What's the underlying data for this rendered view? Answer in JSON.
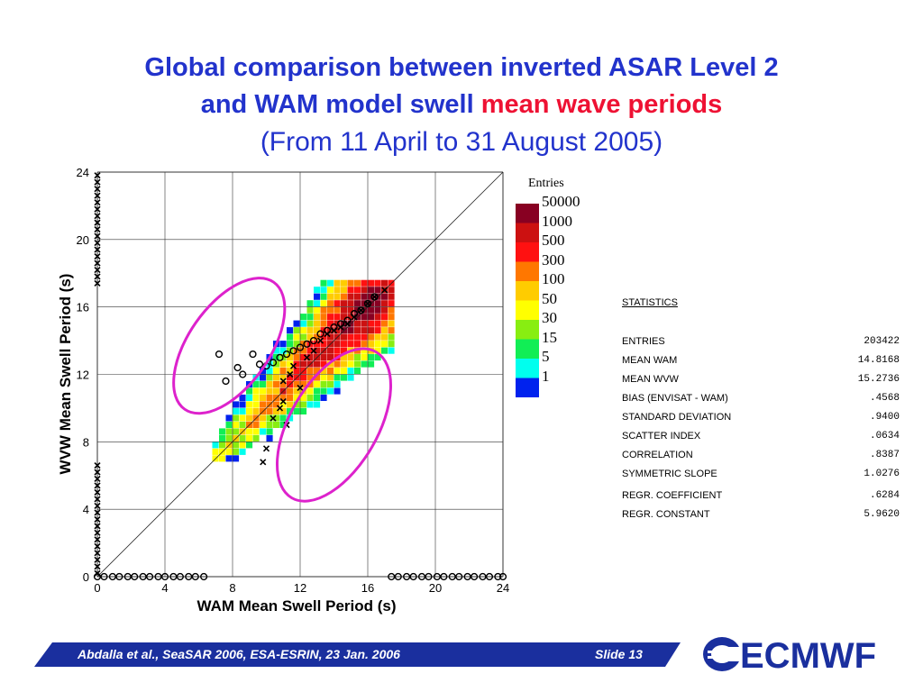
{
  "slide": {
    "title_line1": "Global comparison between inverted ASAR Level 2",
    "title_line2_blue": "and WAM model swell",
    "title_line2_red": "mean wave periods",
    "title_line3": "(From 11 April to 31 August 2005)",
    "footer_text": "Abdalla et al.,  SeaSAR 2006,  ESA-ESRIN,  23 Jan. 2006",
    "footer_slide": "Slide 13",
    "logo_text": "ECMWF",
    "colors": {
      "title_blue": "#2233cc",
      "title_red": "#ee1133",
      "footer_blue": "#1a2f9e",
      "ellipse": "#dd22cc"
    }
  },
  "chart_data": {
    "type": "heatmap",
    "xlabel": "WAM Mean Swell Period (s)",
    "ylabel": "WVW Mean Swell Period (s)",
    "xlim": [
      0,
      24
    ],
    "ylim": [
      0,
      24
    ],
    "xticks": [
      "0",
      "4",
      "8",
      "12",
      "16",
      "20",
      "24"
    ],
    "yticks": [
      "0",
      "4",
      "8",
      "12",
      "16",
      "20",
      "24"
    ],
    "grid": true,
    "legend": {
      "title": "Entries",
      "position": "right",
      "levels": [
        {
          "label": "50000",
          "color": "#880022"
        },
        {
          "label": "1000",
          "color": "#cc1111"
        },
        {
          "label": "500",
          "color": "#ff1111"
        },
        {
          "label": "300",
          "color": "#ff7700"
        },
        {
          "label": "100",
          "color": "#ffcc00"
        },
        {
          "label": "50",
          "color": "#ffff00"
        },
        {
          "label": "30",
          "color": "#88ee11"
        },
        {
          "label": "15",
          "color": "#11ee55"
        },
        {
          "label": "5",
          "color": "#00ffee"
        },
        {
          "label": "1",
          "color": "#0022ee"
        }
      ]
    },
    "statistics": {
      "heading": "STATISTICS",
      "rows": [
        {
          "label": "ENTRIES",
          "value": "203422"
        },
        {
          "label": "MEAN WAM",
          "value": "14.8168"
        },
        {
          "label": "MEAN WVW",
          "value": "15.2736"
        },
        {
          "label": "BIAS (ENVISAT - WAM)",
          "value": ".4568"
        },
        {
          "label": "STANDARD DEVIATION",
          "value": ".9400"
        },
        {
          "label": "SCATTER INDEX",
          "value": ".0634"
        },
        {
          "label": "CORRELATION",
          "value": ".8387"
        },
        {
          "label": "SYMMETRIC SLOPE",
          "value": "1.0276"
        },
        {
          "label": "REGR. COEFFICIENT",
          "value": ".6284"
        },
        {
          "label": "REGR. CONSTANT",
          "value": "5.9620"
        }
      ]
    },
    "binned_means_circles": [
      [
        7.2,
        13.2
      ],
      [
        7.6,
        11.6
      ],
      [
        8.3,
        12.4
      ],
      [
        8.6,
        12.0
      ],
      [
        9.2,
        13.2
      ],
      [
        9.6,
        12.6
      ],
      [
        10.0,
        12.5
      ],
      [
        10.4,
        12.7
      ],
      [
        10.8,
        13.0
      ],
      [
        11.2,
        13.2
      ],
      [
        11.6,
        13.4
      ],
      [
        12.0,
        13.6
      ],
      [
        12.4,
        13.8
      ],
      [
        12.8,
        14.0
      ],
      [
        13.2,
        14.4
      ],
      [
        13.6,
        14.6
      ],
      [
        14.0,
        14.8
      ],
      [
        14.4,
        15.0
      ],
      [
        14.8,
        15.2
      ],
      [
        15.2,
        15.6
      ],
      [
        15.6,
        15.8
      ],
      [
        16.0,
        16.2
      ],
      [
        16.4,
        16.6
      ]
    ],
    "binned_means_crosses": [
      [
        9.8,
        6.8
      ],
      [
        10.0,
        7.6
      ],
      [
        10.4,
        9.4
      ],
      [
        10.8,
        10.0
      ],
      [
        11.0,
        10.4
      ],
      [
        11.2,
        9.0
      ],
      [
        11.0,
        11.6
      ],
      [
        11.4,
        12.0
      ],
      [
        11.6,
        12.5
      ],
      [
        12.0,
        11.2
      ],
      [
        12.4,
        13.0
      ],
      [
        12.8,
        13.4
      ],
      [
        13.2,
        14.0
      ],
      [
        13.6,
        14.4
      ],
      [
        14.0,
        14.6
      ],
      [
        14.4,
        14.8
      ],
      [
        14.8,
        15.0
      ],
      [
        15.2,
        15.4
      ],
      [
        15.6,
        15.8
      ],
      [
        16.0,
        16.2
      ],
      [
        16.4,
        16.6
      ],
      [
        17.0,
        17.0
      ]
    ],
    "axis_crosses_x": [
      0.0
    ],
    "axis_crosses_y": [
      0.2,
      0.6,
      1.0,
      1.4,
      1.8,
      2.2,
      2.6,
      3.0,
      3.4,
      3.8,
      4.2,
      4.6,
      5.0,
      5.4,
      5.8,
      6.2,
      6.6,
      17.4,
      17.8,
      18.2,
      18.6,
      19.0,
      19.4,
      19.8,
      20.2,
      20.6,
      21.0,
      21.4,
      21.8,
      22.2,
      22.6,
      23.0,
      23.4,
      23.8
    ],
    "axis_circles_x": [
      0.0,
      0.4,
      0.9,
      1.3,
      1.8,
      2.2,
      2.7,
      3.1,
      3.6,
      4.0,
      4.5,
      4.9,
      5.4,
      5.8,
      6.3,
      17.4,
      17.8,
      18.3,
      18.7,
      19.2,
      19.6,
      20.1,
      20.5,
      21.0,
      21.4,
      21.9,
      22.3,
      22.8,
      23.2,
      23.7,
      24.0
    ],
    "highlighted_regions": [
      {
        "cx": 7.8,
        "cy": 13.7,
        "rx": 2.4,
        "ry": 4.6,
        "angle": 35
      },
      {
        "cx": 14.0,
        "cy": 9.0,
        "rx": 2.6,
        "ry": 5.0,
        "angle": 30
      }
    ]
  }
}
